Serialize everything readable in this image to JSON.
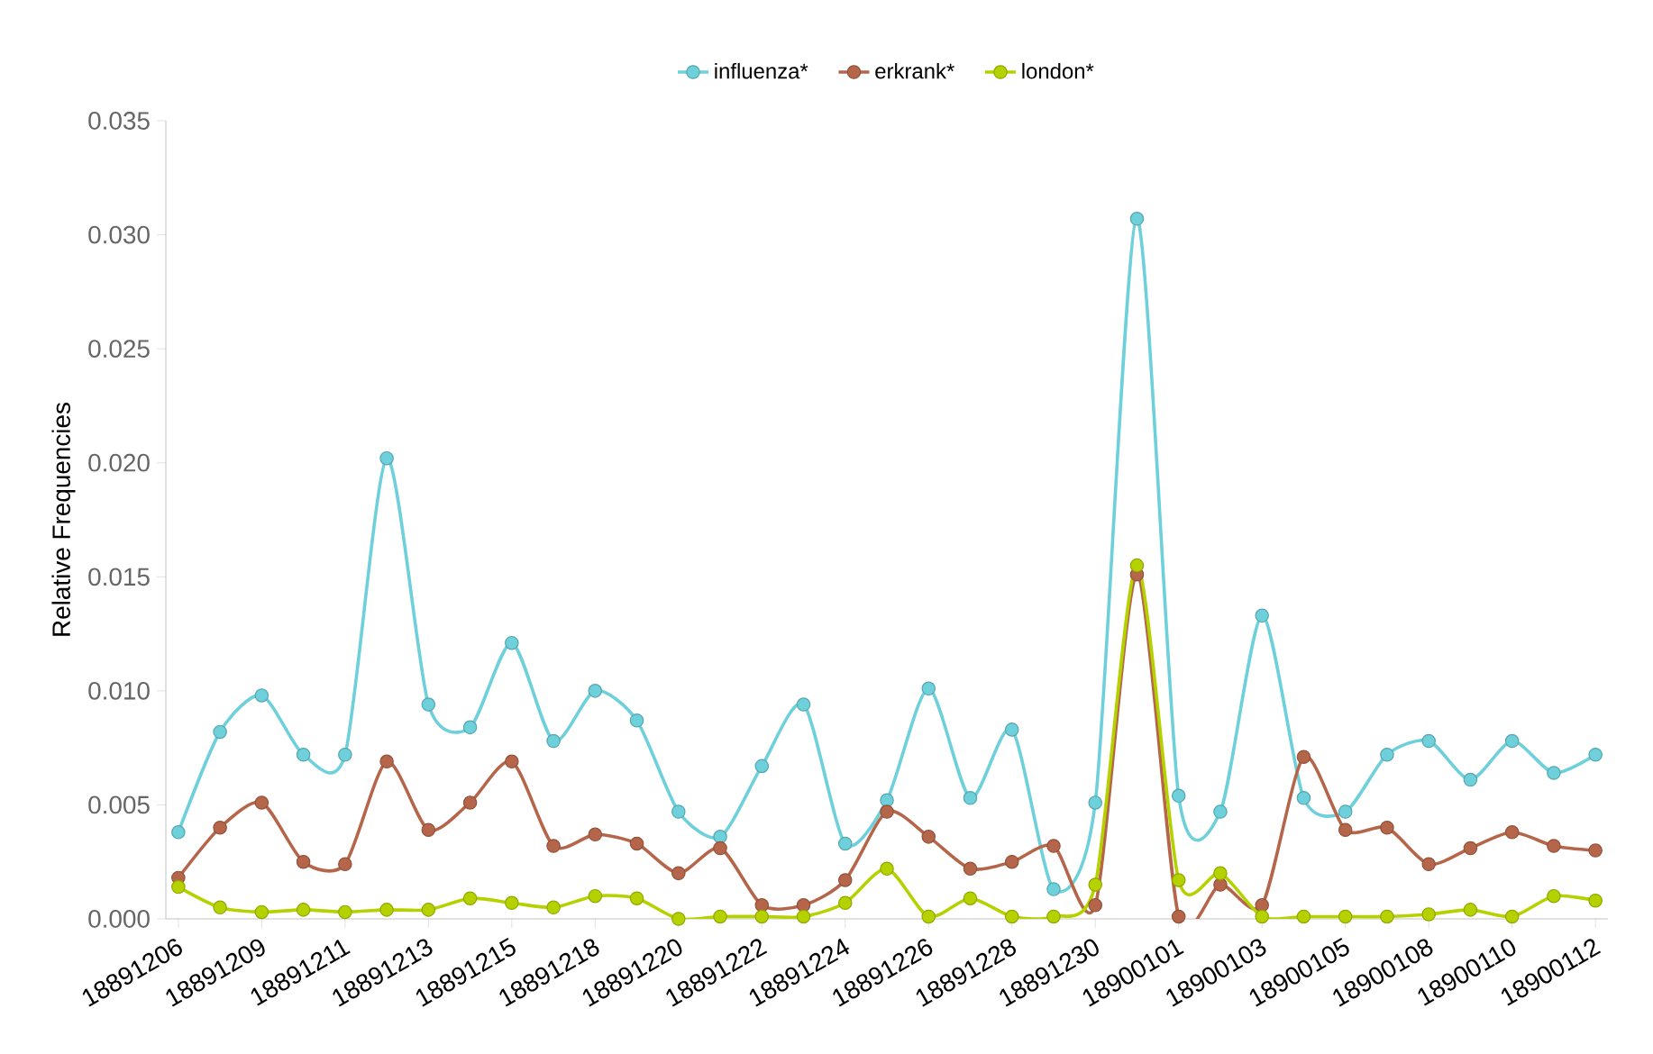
{
  "chart_data": {
    "type": "line",
    "ylabel": "Relative Frequencies",
    "marker": "circle",
    "legend": "top",
    "grid": false,
    "categories": [
      "18891206",
      null,
      "18891209",
      null,
      "18891211",
      null,
      "18891213",
      null,
      "18891215",
      null,
      "18891218",
      null,
      "18891220",
      null,
      "18891222",
      null,
      "18891224",
      null,
      "18891226",
      null,
      "18891228",
      null,
      "18891230",
      null,
      "18900101",
      null,
      "18900103",
      null,
      "18900105",
      null,
      "18900108",
      null,
      "18900110",
      null,
      "18900112"
    ],
    "ylim": [
      0,
      0.035
    ],
    "yticks": [
      {
        "value": 0,
        "label": "0.000"
      },
      {
        "value": 0.005,
        "label": "0.005"
      },
      {
        "value": 0.01,
        "label": "0.010"
      },
      {
        "value": 0.015,
        "label": "0.015"
      },
      {
        "value": 0.02,
        "label": "0.020"
      },
      {
        "value": 0.025,
        "label": "0.025"
      },
      {
        "value": 0.03,
        "label": "0.030"
      },
      {
        "value": 0.035,
        "label": "0.035"
      }
    ],
    "series": [
      {
        "name": "influenza*",
        "color": "#6dd0da",
        "values": [
          0.0038,
          0.0082,
          0.0098,
          0.0072,
          0.0072,
          0.0202,
          0.0094,
          0.0084,
          0.0121,
          0.0078,
          0.01,
          0.0087,
          0.0047,
          0.0036,
          0.0067,
          0.0094,
          0.0033,
          0.0052,
          0.0101,
          0.0053,
          0.0083,
          0.0013,
          0.0051,
          0.0307,
          0.0054,
          0.0047,
          0.0133,
          0.0053,
          0.0047,
          0.0072,
          0.0078,
          0.0061,
          0.0078,
          0.0064,
          0.0072
        ]
      },
      {
        "name": "erkrank*",
        "color": "#b5664a",
        "values": [
          0.0018,
          0.004,
          0.0051,
          0.0025,
          0.0024,
          0.0069,
          0.0039,
          0.0051,
          0.0069,
          0.0032,
          0.0037,
          0.0033,
          0.002,
          0.0031,
          0.0006,
          0.0006,
          0.0017,
          0.0047,
          0.0036,
          0.0022,
          0.0025,
          0.0032,
          0.0006,
          0.0151,
          0.0001,
          0.0015,
          0.0006,
          0.0071,
          0.0039,
          0.004,
          0.0024,
          0.0031,
          0.0038,
          0.0032,
          0.003
        ]
      },
      {
        "name": "london*",
        "color": "#b5d100",
        "values": [
          0.0014,
          0.0005,
          0.0003,
          0.0004,
          0.0003,
          0.0004,
          0.0004,
          0.0009,
          0.0007,
          0.0005,
          0.001,
          0.0009,
          0.0,
          0.0001,
          0.0001,
          0.0001,
          0.0007,
          0.0022,
          0.0001,
          0.0009,
          0.0001,
          0.0001,
          0.0015,
          0.0155,
          0.0017,
          0.002,
          0.0001,
          0.0001,
          0.0001,
          0.0001,
          0.0002,
          0.0004,
          0.0001,
          0.001,
          0.0008
        ]
      }
    ]
  }
}
